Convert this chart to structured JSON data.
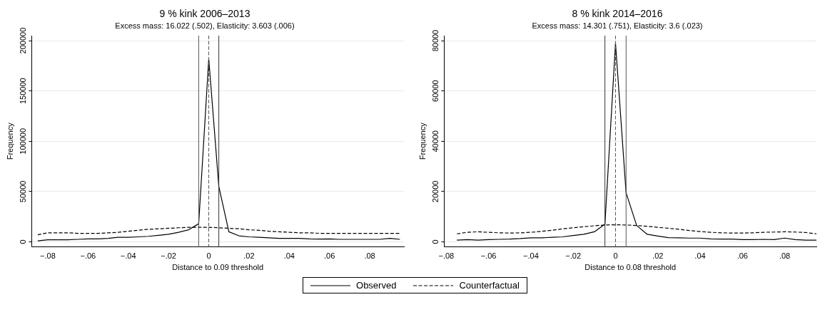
{
  "chart_data": [
    {
      "type": "line",
      "title": "9 % kink 2006–2013",
      "subtitle": "Excess mass: 16.022 (.502), Elasticity: 3.603 (.006)",
      "xlabel": "Distance to 0.09 threshold",
      "ylabel": "Frequency",
      "x": [
        -0.085,
        -0.08,
        -0.075,
        -0.07,
        -0.065,
        -0.06,
        -0.055,
        -0.05,
        -0.045,
        -0.04,
        -0.035,
        -0.03,
        -0.025,
        -0.02,
        -0.015,
        -0.01,
        -0.005,
        0,
        0.005,
        0.01,
        0.015,
        0.02,
        0.025,
        0.03,
        0.035,
        0.04,
        0.045,
        0.05,
        0.055,
        0.06,
        0.065,
        0.07,
        0.075,
        0.08,
        0.085,
        0.09,
        0.095
      ],
      "series": [
        {
          "name": "Observed",
          "color": "#000000",
          "line_style": "solid",
          "values": [
            1000,
            2000,
            2000,
            2000,
            2500,
            3000,
            3000,
            3500,
            4500,
            4500,
            5000,
            5500,
            6500,
            7500,
            9500,
            12000,
            18000,
            182000,
            55000,
            10000,
            6000,
            5000,
            4500,
            4000,
            3500,
            3500,
            3500,
            3000,
            2800,
            3000,
            2500,
            2500,
            2500,
            2500,
            2500,
            3500,
            2500
          ]
        },
        {
          "name": "Counterfactual",
          "color": "#000000",
          "line_style": "dashed",
          "values": [
            7000,
            9000,
            9000,
            9000,
            8500,
            8500,
            8500,
            9000,
            9500,
            10500,
            11500,
            12500,
            13000,
            13500,
            14000,
            14500,
            14500,
            14500,
            14000,
            13500,
            13000,
            12000,
            11500,
            10500,
            10000,
            9500,
            9000,
            9000,
            8500,
            8500,
            8500,
            8500,
            8500,
            8500,
            8500,
            8500,
            8500
          ]
        }
      ],
      "xlim": [
        -0.088,
        0.097
      ],
      "ylim": [
        -5000,
        205000
      ],
      "xticks": [
        {
          "value": -0.08,
          "label": "−.08"
        },
        {
          "value": -0.06,
          "label": "−.06"
        },
        {
          "value": -0.04,
          "label": "−.04"
        },
        {
          "value": -0.02,
          "label": "−.02"
        },
        0,
        {
          "value": 0.02,
          "label": ".02"
        },
        {
          "value": 0.04,
          "label": ".04"
        },
        {
          "value": 0.06,
          "label": ".06"
        },
        {
          "value": 0.08,
          "label": ".08"
        }
      ],
      "yticks": [
        0,
        50000,
        100000,
        150000,
        200000
      ],
      "ref_lines": [
        {
          "axis": "x",
          "value": -0.005,
          "color": "#555555",
          "line_style": "solid"
        },
        {
          "axis": "x",
          "value": 0,
          "color": "#555555",
          "line_style": "dashed"
        },
        {
          "axis": "x",
          "value": 0.005,
          "color": "#333333",
          "line_style": "solid"
        }
      ],
      "grid": "y",
      "legend": "bottom",
      "marker": "none"
    },
    {
      "type": "line",
      "title": "8 % kink 2014–2016",
      "subtitle": "Excess mass: 14.301 (.751), Elasticity: 3.6 (.023)",
      "xlabel": "Distance to 0.08 threshold",
      "ylabel": "Frequency",
      "x": [
        -0.075,
        -0.07,
        -0.065,
        -0.06,
        -0.055,
        -0.05,
        -0.045,
        -0.04,
        -0.035,
        -0.03,
        -0.025,
        -0.02,
        -0.015,
        -0.01,
        -0.005,
        0,
        0.005,
        0.01,
        0.015,
        0.02,
        0.025,
        0.03,
        0.035,
        0.04,
        0.045,
        0.05,
        0.055,
        0.06,
        0.065,
        0.07,
        0.075,
        0.08,
        0.085,
        0.09,
        0.095
      ],
      "series": [
        {
          "color": "#000000",
          "line_style": "solid",
          "values": [
            700,
            900,
            700,
            900,
            1000,
            1100,
            1300,
            1600,
            1600,
            1800,
            2000,
            2500,
            3000,
            4000,
            7000,
            79000,
            19500,
            6500,
            3000,
            2300,
            1700,
            1600,
            1500,
            1500,
            1200,
            1100,
            1100,
            900,
            900,
            1000,
            900,
            1500,
            900,
            700,
            700
          ]
        },
        {
          "color": "#000000",
          "line_style": "dashed",
          "values": [
            3200,
            3800,
            4000,
            3800,
            3600,
            3500,
            3600,
            3800,
            4200,
            4600,
            5200,
            5600,
            6000,
            6400,
            6700,
            6800,
            6700,
            6500,
            6200,
            5800,
            5400,
            5000,
            4500,
            4100,
            3800,
            3600,
            3500,
            3500,
            3600,
            3800,
            3900,
            4000,
            3900,
            3700,
            3200
          ]
        }
      ],
      "xlim": [
        -0.081,
        0.095
      ],
      "ylim": [
        -2000,
        82000
      ],
      "xticks": [
        {
          "value": -0.08,
          "label": "−.08"
        },
        {
          "value": -0.06,
          "label": "−.06"
        },
        {
          "value": -0.04,
          "label": "−.04"
        },
        {
          "value": -0.02,
          "label": "−.02"
        },
        0,
        {
          "value": 0.02,
          "label": ".02"
        },
        {
          "value": 0.04,
          "label": ".04"
        },
        {
          "value": 0.06,
          "label": ".06"
        },
        {
          "value": 0.08,
          "label": ".08"
        }
      ],
      "yticks": [
        0,
        20000,
        40000,
        60000,
        80000
      ],
      "ref_lines": [
        {
          "axis": "x",
          "value": -0.005,
          "color": "#333333",
          "line_style": "solid"
        },
        {
          "axis": "x",
          "value": 0,
          "color": "#555555",
          "line_style": "dashed"
        },
        {
          "axis": "x",
          "value": 0.005,
          "color": "#555555",
          "line_style": "solid"
        }
      ],
      "grid": "y",
      "marker": "none"
    }
  ]
}
